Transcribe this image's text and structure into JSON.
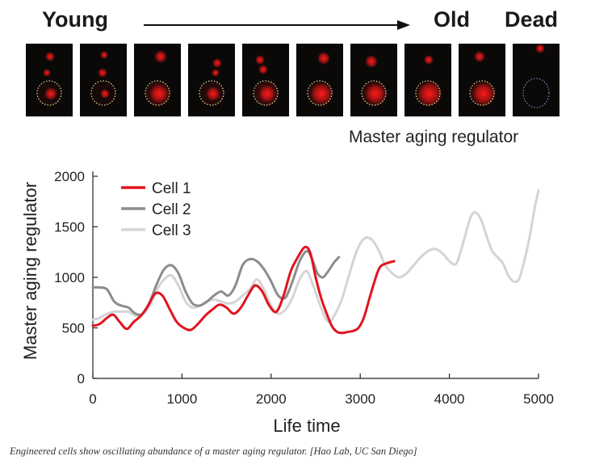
{
  "header": {
    "young": "Young",
    "old": "Old",
    "dead": "Dead"
  },
  "micrographs": {
    "panel_label": "Master aging regulator",
    "colors": {
      "signal": "#ff1a1a",
      "outline_live": "#e8e39a",
      "outline_dead": "#8b86c8",
      "background": "#0b0808"
    },
    "frames": [
      {
        "state": "young"
      },
      {
        "state": "young"
      },
      {
        "state": "aging"
      },
      {
        "state": "aging"
      },
      {
        "state": "aging"
      },
      {
        "state": "aging"
      },
      {
        "state": "aging"
      },
      {
        "state": "old"
      },
      {
        "state": "old"
      },
      {
        "state": "dead"
      }
    ]
  },
  "chart_data": {
    "type": "line",
    "title": "",
    "xlabel": "Life time",
    "ylabel": "Master aging regulator",
    "xlim": [
      0,
      5000
    ],
    "ylim": [
      0,
      2000
    ],
    "xticks": [
      0,
      1000,
      2000,
      3000,
      4000,
      5000
    ],
    "yticks": [
      0,
      500,
      1000,
      1500,
      2000
    ],
    "legend_position": "top-left",
    "series": [
      {
        "name": "Cell 1",
        "color": "#e0141e",
        "x": [
          0,
          80,
          160,
          230,
          300,
          380,
          460,
          540,
          620,
          700,
          780,
          860,
          940,
          1020,
          1100,
          1180,
          1260,
          1340,
          1420,
          1500,
          1580,
          1660,
          1740,
          1820,
          1900,
          1980,
          2060,
          2140,
          2220,
          2300,
          2380,
          2440,
          2500,
          2560,
          2620,
          2680,
          2740,
          2800,
          2860,
          2920,
          2980,
          3040,
          3100,
          3160,
          3220,
          3300,
          3380
        ],
        "values": [
          520,
          540,
          600,
          630,
          560,
          490,
          560,
          620,
          720,
          840,
          820,
          690,
          560,
          500,
          480,
          540,
          620,
          680,
          730,
          700,
          640,
          700,
          820,
          920,
          860,
          720,
          660,
          820,
          1060,
          1200,
          1300,
          1240,
          1000,
          800,
          650,
          520,
          460,
          450,
          460,
          470,
          500,
          600,
          780,
          960,
          1100,
          1140,
          1160
        ]
      },
      {
        "name": "Cell 2",
        "color": "#8c8c8c",
        "x": [
          0,
          80,
          160,
          240,
          320,
          400,
          480,
          560,
          640,
          720,
          800,
          880,
          960,
          1040,
          1120,
          1200,
          1280,
          1360,
          1440,
          1520,
          1600,
          1680,
          1760,
          1840,
          1920,
          2000,
          2080,
          2160,
          2240,
          2320,
          2400,
          2460,
          2520,
          2580,
          2640,
          2700,
          2760
        ],
        "values": [
          900,
          900,
          880,
          760,
          720,
          700,
          640,
          640,
          760,
          940,
          1080,
          1120,
          1040,
          860,
          740,
          720,
          760,
          820,
          860,
          820,
          920,
          1120,
          1180,
          1160,
          1080,
          960,
          820,
          800,
          960,
          1160,
          1260,
          1180,
          1040,
          1000,
          1060,
          1140,
          1200
        ]
      },
      {
        "name": "Cell 3",
        "color": "#d4d4d4",
        "x": [
          0,
          80,
          160,
          240,
          320,
          400,
          480,
          560,
          640,
          720,
          800,
          880,
          960,
          1040,
          1120,
          1200,
          1280,
          1360,
          1440,
          1520,
          1600,
          1680,
          1760,
          1840,
          1920,
          2000,
          2080,
          2160,
          2240,
          2320,
          2400,
          2480,
          2560,
          2640,
          2720,
          2800,
          2880,
          2960,
          3040,
          3120,
          3200,
          3280,
          3360,
          3440,
          3520,
          3600,
          3680,
          3760,
          3840,
          3920,
          4000,
          4080,
          4160,
          4240,
          4300,
          4360,
          4420,
          4480,
          4540,
          4600,
          4660,
          4720,
          4780,
          4840,
          4900,
          4960,
          5000
        ],
        "values": [
          580,
          600,
          640,
          660,
          660,
          660,
          620,
          640,
          720,
          880,
          980,
          1020,
          920,
          760,
          700,
          720,
          760,
          780,
          760,
          740,
          760,
          820,
          880,
          980,
          880,
          720,
          640,
          680,
          800,
          980,
          1060,
          900,
          700,
          560,
          640,
          800,
          1040,
          1260,
          1380,
          1380,
          1280,
          1120,
          1040,
          1000,
          1040,
          1120,
          1200,
          1260,
          1280,
          1240,
          1160,
          1140,
          1360,
          1600,
          1640,
          1560,
          1400,
          1260,
          1200,
          1140,
          1020,
          960,
          980,
          1160,
          1400,
          1700,
          1860
        ]
      }
    ]
  },
  "caption": "Engineered cells show oscillating abundance of a master aging regulator. [Hao Lab, UC San Diego]"
}
